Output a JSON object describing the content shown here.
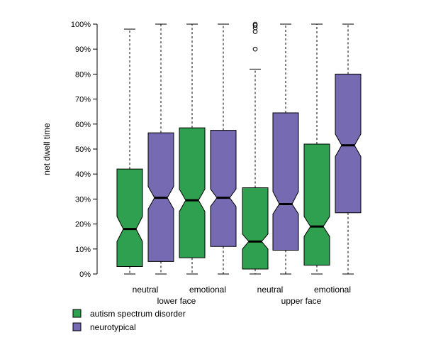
{
  "chart_data": {
    "type": "boxplot",
    "title": "",
    "ylabel": "net dwell time",
    "ylim": [
      0,
      100
    ],
    "y_ticks": [
      "0%",
      "10%",
      "20%",
      "30%",
      "40%",
      "50%",
      "60%",
      "70%",
      "80%",
      "90%",
      "100%"
    ],
    "x_group_labels": [
      {
        "name": "lower face",
        "subgroups": [
          "neutral",
          "emotional"
        ]
      },
      {
        "name": "upper face",
        "subgroups": [
          "neutral",
          "emotional"
        ]
      }
    ],
    "legend": {
      "placement": "bottom-left",
      "items": [
        {
          "name": "autism spectrum disorder",
          "color": "#2ea04f"
        },
        {
          "name": "neurotypical",
          "color": "#766bb2"
        }
      ]
    },
    "notched": true,
    "boxes": [
      {
        "region": "lower face",
        "expression": "neutral",
        "group": "autism spectrum disorder",
        "min": 0,
        "q1": 3,
        "median": 18,
        "q3": 42,
        "max": 98,
        "notch_low": 13,
        "notch_high": 23,
        "outliers": []
      },
      {
        "region": "lower face",
        "expression": "neutral",
        "group": "neurotypical",
        "min": 0,
        "q1": 5,
        "median": 30.5,
        "q3": 56.5,
        "max": 100,
        "notch_low": 26,
        "notch_high": 35,
        "outliers": []
      },
      {
        "region": "lower face",
        "expression": "emotional",
        "group": "autism spectrum disorder",
        "min": 0,
        "q1": 6.5,
        "median": 29.5,
        "q3": 58.5,
        "max": 100,
        "notch_low": 25,
        "notch_high": 34,
        "outliers": []
      },
      {
        "region": "lower face",
        "expression": "emotional",
        "group": "neurotypical",
        "min": 0,
        "q1": 11,
        "median": 30.5,
        "q3": 57.5,
        "max": 100,
        "notch_low": 27,
        "notch_high": 34,
        "outliers": []
      },
      {
        "region": "upper face",
        "expression": "neutral",
        "group": "autism spectrum disorder",
        "min": 0,
        "q1": 2,
        "median": 13,
        "q3": 34.5,
        "max": 82,
        "notch_low": 10,
        "notch_high": 16,
        "outliers": [
          90,
          97,
          98.5,
          99.5,
          100
        ]
      },
      {
        "region": "upper face",
        "expression": "neutral",
        "group": "neurotypical",
        "min": 0,
        "q1": 9.5,
        "median": 28,
        "q3": 64.5,
        "max": 100,
        "notch_low": 24,
        "notch_high": 33,
        "outliers": []
      },
      {
        "region": "upper face",
        "expression": "emotional",
        "group": "autism spectrum disorder",
        "min": 0,
        "q1": 3.5,
        "median": 19,
        "q3": 52,
        "max": 100,
        "notch_low": 15,
        "notch_high": 23,
        "outliers": []
      },
      {
        "region": "upper face",
        "expression": "emotional",
        "group": "neurotypical",
        "min": 0,
        "q1": 24.5,
        "median": 51.5,
        "q3": 80,
        "max": 100,
        "notch_low": 47,
        "notch_high": 56,
        "outliers": []
      }
    ]
  }
}
